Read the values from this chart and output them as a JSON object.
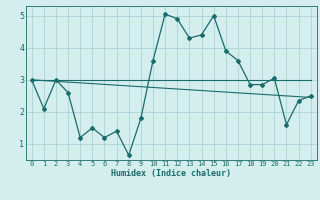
{
  "xlabel": "Humidex (Indice chaleur)",
  "bg_color": "#d4eeee",
  "grid_color": "#aad4d4",
  "line_color": "#1a6b6b",
  "xlim": [
    -0.5,
    23.5
  ],
  "ylim": [
    0.5,
    5.3
  ],
  "yticks": [
    1,
    2,
    3,
    4,
    5
  ],
  "xticks": [
    0,
    1,
    2,
    3,
    4,
    5,
    6,
    7,
    8,
    9,
    10,
    11,
    12,
    13,
    14,
    15,
    16,
    17,
    18,
    19,
    20,
    21,
    22,
    23
  ],
  "series1_x": [
    0,
    1,
    2,
    3,
    4,
    5,
    6,
    7,
    8,
    9,
    10,
    11,
    12,
    13,
    14,
    15,
    16,
    17,
    18,
    19,
    20,
    21,
    22,
    23
  ],
  "series1_y": [
    3.0,
    2.1,
    3.0,
    2.6,
    1.2,
    1.5,
    1.2,
    1.4,
    0.65,
    1.8,
    3.6,
    5.05,
    4.9,
    4.3,
    4.4,
    5.0,
    3.9,
    3.6,
    2.85,
    2.85,
    3.05,
    1.6,
    2.35,
    2.5
  ],
  "trend1_x": [
    0,
    23
  ],
  "trend1_y": [
    3.0,
    3.0
  ],
  "trend2_x": [
    0,
    23
  ],
  "trend2_y": [
    3.0,
    2.45
  ]
}
